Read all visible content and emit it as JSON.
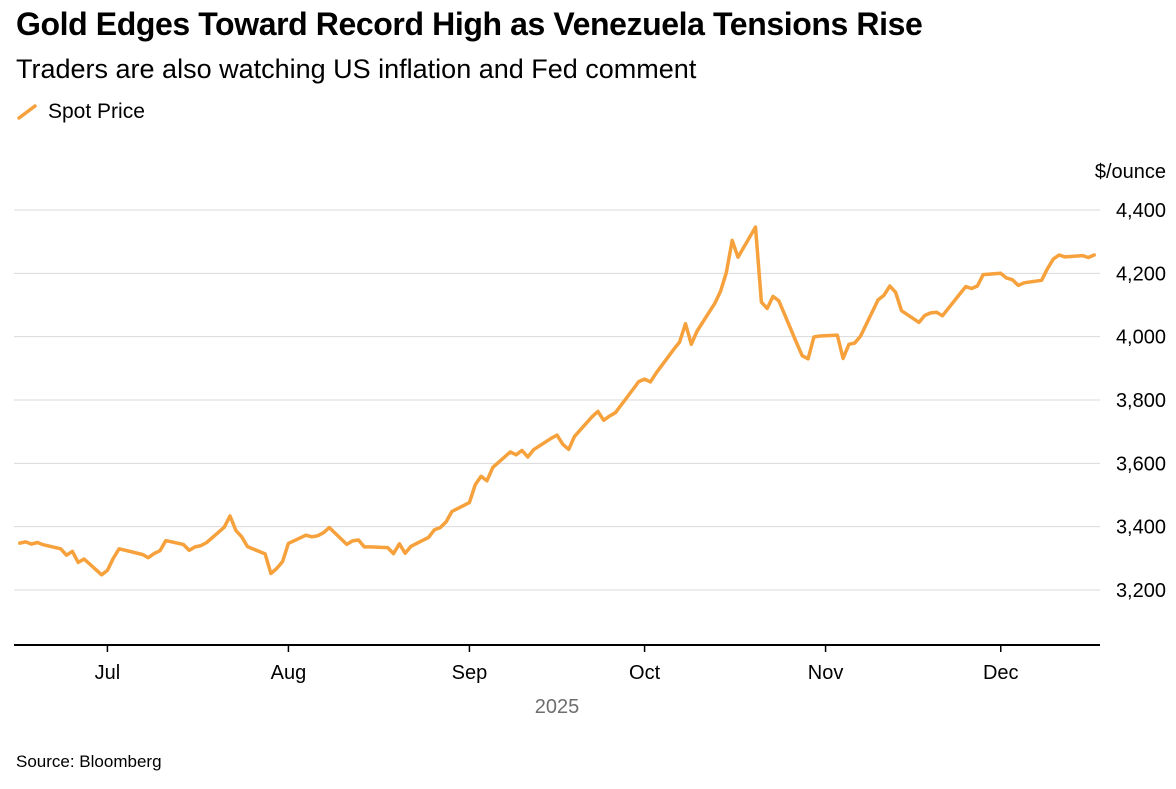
{
  "header": {
    "title": "Gold Edges Toward Record High as Venezuela Tensions Rise",
    "subtitle": "Traders are also watching US inflation and Fed comment"
  },
  "legend": {
    "items": [
      {
        "label": "Spot Price",
        "color": "#F6A13C",
        "glyph": "line-slash-icon"
      }
    ]
  },
  "footer": {
    "source": "Source: Bloomberg"
  },
  "colors": {
    "accent_orange": "#F6A13C",
    "gridline": "#D9D9D9",
    "axis": "#000000",
    "year_label_gray": "#6E6E6E"
  },
  "chart_data": {
    "type": "line",
    "title": "Gold Edges Toward Record High as Venezuela Tensions Rise",
    "subtitle": "Traders are also watching US inflation and Fed comment",
    "unit_label": "$/ounce",
    "source": "Source: Bloomberg",
    "legend_position": "top-left",
    "grid": "horizontal-only",
    "x_axis": {
      "domain": [
        "2025-06-15",
        "2025-12-18"
      ],
      "year_label": "2025",
      "ticks": [
        {
          "date": "2025-07-01",
          "label": "Jul"
        },
        {
          "date": "2025-08-01",
          "label": "Aug"
        },
        {
          "date": "2025-09-01",
          "label": "Sep"
        },
        {
          "date": "2025-10-01",
          "label": "Oct"
        },
        {
          "date": "2025-11-01",
          "label": "Nov"
        },
        {
          "date": "2025-12-01",
          "label": "Dec"
        }
      ]
    },
    "y_axis": {
      "unit": "$/ounce",
      "range": [
        3200,
        4400
      ],
      "tick_side": "right",
      "gridline_color": "#D9D9D9",
      "ticks": [
        {
          "value": 4400,
          "label": "4,400"
        },
        {
          "value": 4200,
          "label": "4,200"
        },
        {
          "value": 4000,
          "label": "4,000"
        },
        {
          "value": 3800,
          "label": "3,800"
        },
        {
          "value": 3600,
          "label": "3,600"
        },
        {
          "value": 3400,
          "label": "3,400"
        },
        {
          "value": 3200,
          "label": "3,200"
        }
      ]
    },
    "series": [
      {
        "name": "Spot Price",
        "color": "#F6A13C",
        "points": [
          [
            "2025-06-16",
            3348
          ],
          [
            "2025-06-17",
            3352
          ],
          [
            "2025-06-18",
            3345
          ],
          [
            "2025-06-19",
            3350
          ],
          [
            "2025-06-20",
            3343
          ],
          [
            "2025-06-23",
            3330
          ],
          [
            "2025-06-24",
            3310
          ],
          [
            "2025-06-25",
            3322
          ],
          [
            "2025-06-26",
            3287
          ],
          [
            "2025-06-27",
            3298
          ],
          [
            "2025-06-30",
            3248
          ],
          [
            "2025-07-01",
            3262
          ],
          [
            "2025-07-02",
            3300
          ],
          [
            "2025-07-03",
            3330
          ],
          [
            "2025-07-07",
            3312
          ],
          [
            "2025-07-08",
            3302
          ],
          [
            "2025-07-09",
            3315
          ],
          [
            "2025-07-10",
            3324
          ],
          [
            "2025-07-11",
            3356
          ],
          [
            "2025-07-14",
            3344
          ],
          [
            "2025-07-15",
            3325
          ],
          [
            "2025-07-16",
            3336
          ],
          [
            "2025-07-17",
            3340
          ],
          [
            "2025-07-18",
            3350
          ],
          [
            "2025-07-21",
            3398
          ],
          [
            "2025-07-22",
            3434
          ],
          [
            "2025-07-23",
            3388
          ],
          [
            "2025-07-24",
            3368
          ],
          [
            "2025-07-25",
            3337
          ],
          [
            "2025-07-28",
            3314
          ],
          [
            "2025-07-29",
            3252
          ],
          [
            "2025-07-30",
            3268
          ],
          [
            "2025-07-31",
            3290
          ],
          [
            "2025-08-01",
            3347
          ],
          [
            "2025-08-04",
            3373
          ],
          [
            "2025-08-05",
            3368
          ],
          [
            "2025-08-06",
            3371
          ],
          [
            "2025-08-07",
            3381
          ],
          [
            "2025-08-08",
            3397
          ],
          [
            "2025-08-11",
            3344
          ],
          [
            "2025-08-12",
            3355
          ],
          [
            "2025-08-13",
            3358
          ],
          [
            "2025-08-14",
            3336
          ],
          [
            "2025-08-15",
            3336
          ],
          [
            "2025-08-18",
            3334
          ],
          [
            "2025-08-19",
            3315
          ],
          [
            "2025-08-20",
            3346
          ],
          [
            "2025-08-21",
            3316
          ],
          [
            "2025-08-22",
            3338
          ],
          [
            "2025-08-25",
            3366
          ],
          [
            "2025-08-26",
            3390
          ],
          [
            "2025-08-27",
            3397
          ],
          [
            "2025-08-28",
            3415
          ],
          [
            "2025-08-29",
            3448
          ],
          [
            "2025-09-01",
            3476
          ],
          [
            "2025-09-02",
            3533
          ],
          [
            "2025-09-03",
            3559
          ],
          [
            "2025-09-04",
            3545
          ],
          [
            "2025-09-05",
            3587
          ],
          [
            "2025-09-08",
            3636
          ],
          [
            "2025-09-09",
            3627
          ],
          [
            "2025-09-10",
            3641
          ],
          [
            "2025-09-11",
            3620
          ],
          [
            "2025-09-12",
            3643
          ],
          [
            "2025-09-15",
            3679
          ],
          [
            "2025-09-16",
            3689
          ],
          [
            "2025-09-17",
            3660
          ],
          [
            "2025-09-18",
            3644
          ],
          [
            "2025-09-19",
            3685
          ],
          [
            "2025-09-22",
            3747
          ],
          [
            "2025-09-23",
            3764
          ],
          [
            "2025-09-24",
            3736
          ],
          [
            "2025-09-25",
            3749
          ],
          [
            "2025-09-26",
            3760
          ],
          [
            "2025-09-29",
            3833
          ],
          [
            "2025-09-30",
            3858
          ],
          [
            "2025-10-01",
            3866
          ],
          [
            "2025-10-02",
            3857
          ],
          [
            "2025-10-03",
            3886
          ],
          [
            "2025-10-06",
            3960
          ],
          [
            "2025-10-07",
            3983
          ],
          [
            "2025-10-08",
            4041
          ],
          [
            "2025-10-09",
            3976
          ],
          [
            "2025-10-10",
            4018
          ],
          [
            "2025-10-13",
            4104
          ],
          [
            "2025-10-14",
            4143
          ],
          [
            "2025-10-15",
            4202
          ],
          [
            "2025-10-16",
            4304
          ],
          [
            "2025-10-17",
            4251
          ],
          [
            "2025-10-20",
            4346
          ],
          [
            "2025-10-21",
            4109
          ],
          [
            "2025-10-22",
            4089
          ],
          [
            "2025-10-23",
            4127
          ],
          [
            "2025-10-24",
            4113
          ],
          [
            "2025-10-27",
            3982
          ],
          [
            "2025-10-28",
            3940
          ],
          [
            "2025-10-29",
            3930
          ],
          [
            "2025-10-30",
            3999
          ],
          [
            "2025-10-31",
            4002
          ],
          [
            "2025-11-03",
            4005
          ],
          [
            "2025-11-04",
            3931
          ],
          [
            "2025-11-05",
            3976
          ],
          [
            "2025-11-06",
            3980
          ],
          [
            "2025-11-07",
            4002
          ],
          [
            "2025-11-10",
            4116
          ],
          [
            "2025-11-11",
            4131
          ],
          [
            "2025-11-12",
            4160
          ],
          [
            "2025-11-13",
            4140
          ],
          [
            "2025-11-14",
            4082
          ],
          [
            "2025-11-17",
            4045
          ],
          [
            "2025-11-18",
            4067
          ],
          [
            "2025-11-19",
            4075
          ],
          [
            "2025-11-20",
            4077
          ],
          [
            "2025-11-21",
            4066
          ],
          [
            "2025-11-24",
            4135
          ],
          [
            "2025-11-25",
            4158
          ],
          [
            "2025-11-26",
            4152
          ],
          [
            "2025-11-27",
            4160
          ],
          [
            "2025-11-28",
            4196
          ],
          [
            "2025-12-01",
            4200
          ],
          [
            "2025-12-02",
            4185
          ],
          [
            "2025-12-03",
            4180
          ],
          [
            "2025-12-04",
            4162
          ],
          [
            "2025-12-05",
            4170
          ],
          [
            "2025-12-08",
            4178
          ],
          [
            "2025-12-09",
            4215
          ],
          [
            "2025-12-10",
            4245
          ],
          [
            "2025-12-11",
            4258
          ],
          [
            "2025-12-12",
            4252
          ],
          [
            "2025-12-15",
            4256
          ],
          [
            "2025-12-16",
            4250
          ],
          [
            "2025-12-17",
            4258
          ]
        ]
      }
    ]
  }
}
